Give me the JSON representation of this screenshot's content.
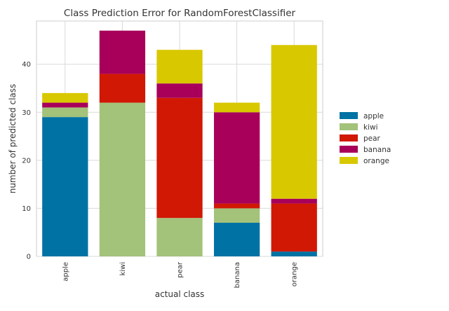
{
  "chart_data": {
    "type": "bar",
    "stacked": true,
    "title": "Class Prediction Error for RandomForestClassifier",
    "xlabel": "actual class",
    "ylabel": "number of predicted class",
    "categories": [
      "apple",
      "kiwi",
      "pear",
      "banana",
      "orange"
    ],
    "series": [
      {
        "name": "apple",
        "color": "#0072a4",
        "values": [
          29,
          0,
          0,
          7,
          1
        ]
      },
      {
        "name": "kiwi",
        "color": "#a3c27a",
        "values": [
          2,
          32,
          8,
          3,
          0
        ]
      },
      {
        "name": "pear",
        "color": "#d01805",
        "values": [
          0,
          6,
          25,
          1,
          10
        ]
      },
      {
        "name": "banana",
        "color": "#a8005a",
        "values": [
          1,
          9,
          3,
          19,
          1
        ]
      },
      {
        "name": "orange",
        "color": "#d8c800",
        "values": [
          2,
          0,
          7,
          2,
          32
        ]
      }
    ],
    "ylim": [
      0,
      49
    ],
    "yticks": [
      0,
      10,
      20,
      30,
      40
    ],
    "grid": true,
    "legend_position": "right"
  }
}
